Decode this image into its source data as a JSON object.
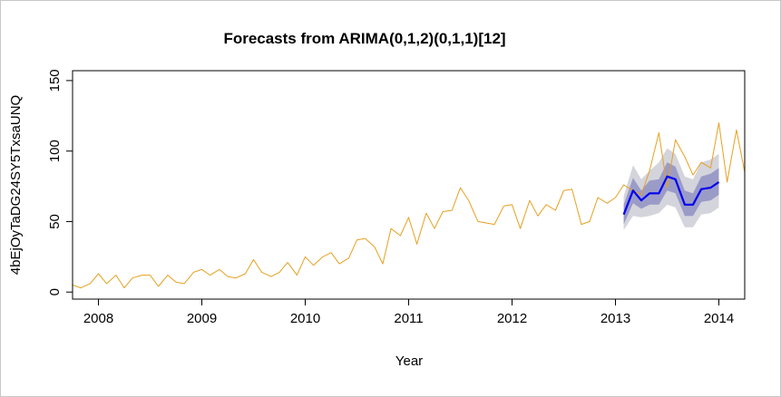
{
  "chart_data": {
    "type": "line",
    "title": "Forecasts from ARIMA(0,1,2)(0,1,1)[12]",
    "xlabel": "Year",
    "ylabel": "4bEjOyTaDG24SY5TxsaUNQ",
    "xlim": [
      2007.75,
      2014.25
    ],
    "ylim": [
      -5,
      157
    ],
    "x_ticks": [
      2008,
      2009,
      2010,
      2011,
      2012,
      2013,
      2014
    ],
    "x_tick_labels": [
      "2008",
      "2009",
      "2010",
      "2011",
      "2012",
      "2013",
      "2014"
    ],
    "y_ticks": [
      0,
      50,
      100,
      150
    ],
    "y_tick_labels": [
      "0",
      "50",
      "100",
      "150"
    ],
    "series": [
      {
        "role": "observed",
        "color": "#e6a020",
        "x": [
          2007.75,
          2007.83,
          2007.92,
          2008.0,
          2008.08,
          2008.17,
          2008.25,
          2008.33,
          2008.42,
          2008.5,
          2008.58,
          2008.67,
          2008.75,
          2008.83,
          2008.92,
          2009.0,
          2009.08,
          2009.17,
          2009.25,
          2009.33,
          2009.42,
          2009.5,
          2009.58,
          2009.67,
          2009.75,
          2009.83,
          2009.92,
          2010.0,
          2010.08,
          2010.17,
          2010.25,
          2010.33,
          2010.42,
          2010.5,
          2010.58,
          2010.67,
          2010.75,
          2010.83,
          2010.92,
          2011.0,
          2011.08,
          2011.17,
          2011.25,
          2011.33,
          2011.42,
          2011.5,
          2011.58,
          2011.67,
          2011.75,
          2011.83,
          2011.92,
          2012.0,
          2012.08,
          2012.17,
          2012.25,
          2012.33,
          2012.42,
          2012.5,
          2012.58,
          2012.67,
          2012.75,
          2012.83,
          2012.92,
          2013.0,
          2013.08,
          2013.17,
          2013.25,
          2013.33,
          2013.42,
          2013.5,
          2013.58,
          2013.67,
          2013.75,
          2013.83,
          2013.92,
          2014.0,
          2014.08,
          2014.17,
          2014.25
        ],
        "values": [
          5,
          3,
          6,
          13,
          6,
          12,
          3,
          10,
          12,
          12,
          4,
          12,
          7,
          6,
          14,
          16,
          12,
          16,
          11,
          10,
          13,
          23,
          14,
          11,
          14,
          21,
          12,
          25,
          19,
          25,
          28,
          20,
          24,
          37,
          38,
          32,
          20,
          45,
          40,
          53,
          34,
          56,
          45,
          57,
          58,
          74,
          65,
          50,
          49,
          48,
          61,
          62,
          45,
          65,
          54,
          62,
          58,
          72,
          73,
          48,
          50,
          67,
          63,
          67,
          76,
          72,
          69,
          86,
          113,
          74,
          108,
          96,
          83,
          92,
          88,
          120,
          78,
          115,
          85
        ]
      },
      {
        "role": "forecast",
        "color": "#0000ee",
        "x": [
          2013.08,
          2013.17,
          2013.25,
          2013.33,
          2013.42,
          2013.5,
          2013.58,
          2013.67,
          2013.75,
          2013.83,
          2013.92,
          2014.0
        ],
        "values": [
          55,
          72,
          65,
          70,
          70,
          82,
          80,
          62,
          62,
          73,
          74,
          78
        ]
      }
    ],
    "intervals": [
      {
        "level": "95%",
        "color": "#d4d4dc",
        "lower": [
          44,
          54,
          53,
          54,
          56,
          62,
          60,
          46,
          46,
          55,
          56,
          60
        ],
        "upper": [
          68,
          90,
          80,
          86,
          92,
          102,
          98,
          82,
          80,
          92,
          94,
          98
        ]
      },
      {
        "level": "80%",
        "color": "#9b9bc8",
        "lower": [
          48,
          63,
          59,
          62,
          62,
          72,
          70,
          54,
          54,
          64,
          65,
          69
        ],
        "upper": [
          62,
          81,
          72,
          79,
          80,
          92,
          89,
          72,
          70,
          82,
          84,
          88
        ]
      }
    ]
  }
}
